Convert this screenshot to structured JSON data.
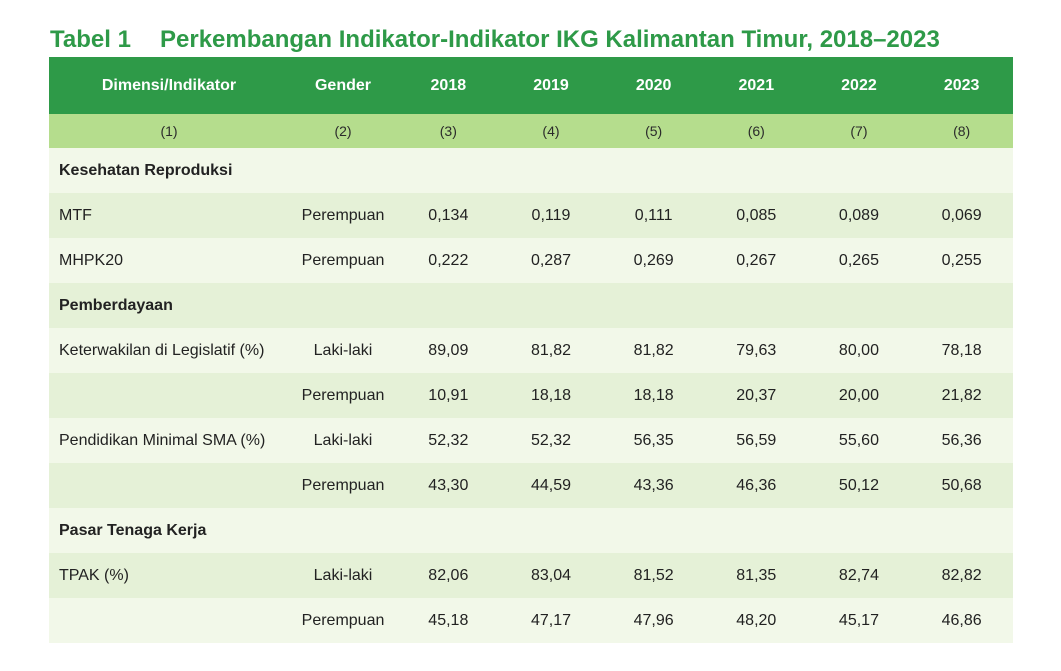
{
  "title": {
    "number": "Tabel 1",
    "text": "Perkembangan Indikator-Indikator IKG Kalimantan Timur, 2018–2023"
  },
  "table": {
    "headers": [
      "Dimensi/Indikator",
      "Gender",
      "2018",
      "2019",
      "2020",
      "2021",
      "2022",
      "2023"
    ],
    "column_numbers": [
      "(1)",
      "(2)",
      "(3)",
      "(4)",
      "(5)",
      "(6)",
      "(7)",
      "(8)"
    ],
    "rows": [
      {
        "section": "Kesehatan Reproduksi"
      },
      {
        "indicator": "MTF",
        "gender": "Perempuan",
        "values": [
          "0,134",
          "0,119",
          "0,111",
          "0,085",
          "0,089",
          "0,069"
        ]
      },
      {
        "indicator": "MHPK20",
        "gender": "Perempuan",
        "values": [
          "0,222",
          "0,287",
          "0,269",
          "0,267",
          "0,265",
          "0,255"
        ]
      },
      {
        "section": "Pemberdayaan"
      },
      {
        "indicator": "Keterwakilan di Legislatif (%)",
        "gender": "Laki-laki",
        "values": [
          "89,09",
          "81,82",
          "81,82",
          "79,63",
          "80,00",
          "78,18"
        ]
      },
      {
        "indicator": "",
        "gender": "Perempuan",
        "values": [
          "10,91",
          "18,18",
          "18,18",
          "20,37",
          "20,00",
          "21,82"
        ]
      },
      {
        "indicator": "Pendidikan Minimal SMA (%)",
        "gender": "Laki-laki",
        "values": [
          "52,32",
          "52,32",
          "56,35",
          "56,59",
          "55,60",
          "56,36"
        ]
      },
      {
        "indicator": "",
        "gender": "Perempuan",
        "values": [
          "43,30",
          "44,59",
          "43,36",
          "46,36",
          "50,12",
          "50,68"
        ]
      },
      {
        "section": "Pasar Tenaga Kerja"
      },
      {
        "indicator": "TPAK (%)",
        "gender": "Laki-laki",
        "values": [
          "82,06",
          "83,04",
          "81,52",
          "81,35",
          "82,74",
          "82,82"
        ]
      },
      {
        "indicator": "",
        "gender": "Perempuan",
        "values": [
          "45,18",
          "47,17",
          "47,96",
          "48,20",
          "45,17",
          "46,86"
        ]
      }
    ]
  },
  "colors": {
    "title": "#2e9a48",
    "header_bg": "#2e9a48",
    "subheader_bg": "#b5dd8d",
    "row_light": "#f2f8e9",
    "row_dark": "#e5f1d7"
  }
}
